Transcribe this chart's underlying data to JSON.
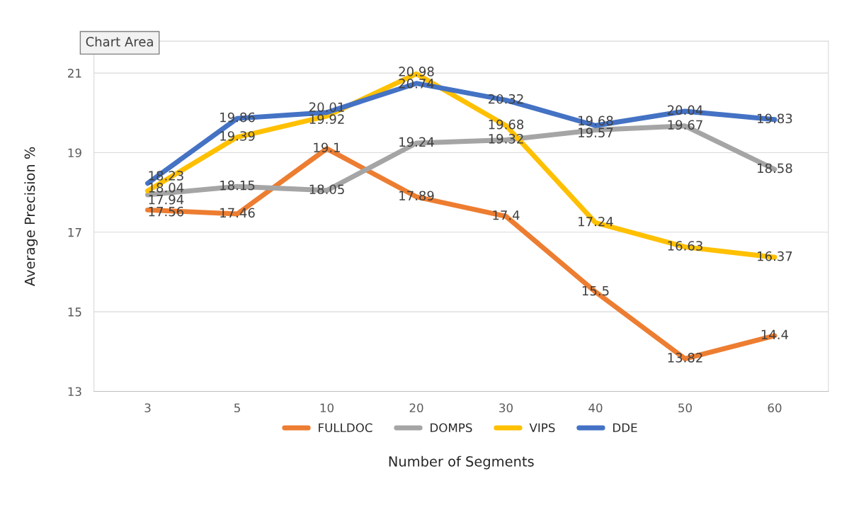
{
  "chart_data": {
    "type": "line",
    "xlabel": "Number of Segments",
    "ylabel": "Average Precision %",
    "categories": [
      "3",
      "5",
      "10",
      "20",
      "30",
      "40",
      "50",
      "60"
    ],
    "series": [
      {
        "name": "FULLDOC",
        "color": "#ed7d31",
        "values": [
          17.56,
          17.46,
          19.1,
          17.89,
          17.4,
          15.5,
          13.82,
          14.4
        ]
      },
      {
        "name": "DOMPS",
        "color": "#a5a5a5",
        "values": [
          17.94,
          18.15,
          18.05,
          19.24,
          19.32,
          19.57,
          19.67,
          18.58
        ]
      },
      {
        "name": "VIPS",
        "color": "#ffc000",
        "values": [
          18.04,
          19.39,
          19.92,
          20.98,
          19.68,
          17.24,
          16.63,
          16.37
        ]
      },
      {
        "name": "DDE",
        "color": "#4472c4",
        "values": [
          18.23,
          19.86,
          20.01,
          20.74,
          20.32,
          19.68,
          20.04,
          19.83
        ]
      }
    ],
    "ylim": [
      13,
      21.8
    ],
    "yticks": [
      13,
      15,
      17,
      19,
      21
    ],
    "grid": "y",
    "legend": "bottom",
    "data_labels": true,
    "marker": "none",
    "line_style": "solid",
    "annotations": [
      "Chart Area"
    ]
  }
}
